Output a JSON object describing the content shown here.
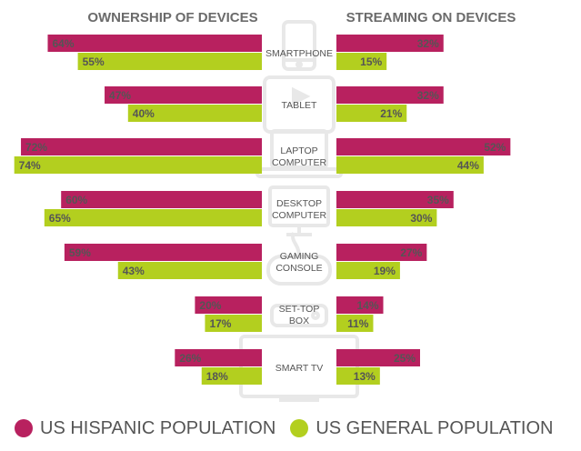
{
  "chart_data": {
    "type": "bar",
    "left_title": "OWNERSHIP OF DEVICES",
    "right_title": "STREAMING ON DEVICES",
    "categories": [
      [
        "SMARTPHONE"
      ],
      [
        "TABLET"
      ],
      [
        "LAPTOP",
        "COMPUTER"
      ],
      [
        "DESKTOP",
        "COMPUTER"
      ],
      [
        "GAMING",
        "CONSOLE"
      ],
      [
        "SET-TOP",
        "BOX"
      ],
      [
        "SMART TV"
      ]
    ],
    "categories_icons": [
      "smartphone-icon",
      "tablet-icon",
      "laptop-icon",
      "desktop-icon",
      "gamepad-icon",
      "set-top-box-icon",
      "tv-icon"
    ],
    "ownership": [
      {
        "name": "US HISPANIC POPULATION",
        "values": [
          64,
          47,
          72,
          60,
          59,
          20,
          26
        ],
        "labels": [
          "64%",
          "47%",
          "72%",
          "60%",
          "59%",
          "20%",
          "26%"
        ]
      },
      {
        "name": "US GENERAL POPULATION",
        "values": [
          55,
          40,
          74,
          65,
          43,
          17,
          18
        ],
        "labels": [
          "55%",
          "40%",
          "74%",
          "65%",
          "43%",
          "17%",
          "18%"
        ]
      }
    ],
    "streaming": [
      {
        "name": "US HISPANIC POPULATION",
        "values": [
          32,
          32,
          52,
          35,
          27,
          14,
          25
        ],
        "labels": [
          "32%",
          "32%",
          "52%",
          "35%",
          "27%",
          "14%",
          "25%"
        ]
      },
      {
        "name": "US GENERAL POPULATION",
        "values": [
          15,
          21,
          44,
          30,
          19,
          11,
          13
        ],
        "labels": [
          "15%",
          "21%",
          "44%",
          "30%",
          "19%",
          "11%",
          "13%"
        ]
      }
    ],
    "colors": {
      "hispanic": "#b8215f",
      "general": "#b3cf1f",
      "icon": "#e8e8e8",
      "title": "#6b6b6b",
      "label": "#555555"
    }
  },
  "legend": {
    "hispanic_label": "US HISPANIC POPULATION",
    "general_label": "US GENERAL POPULATION"
  }
}
